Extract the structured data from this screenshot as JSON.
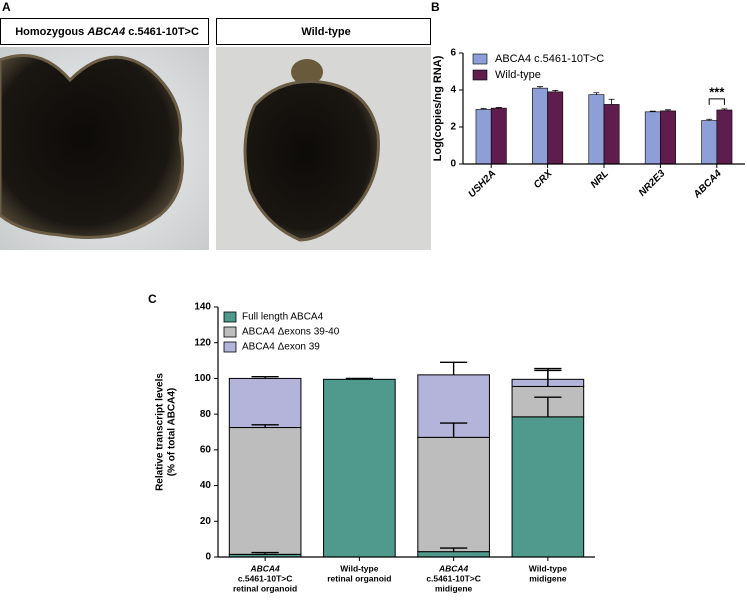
{
  "panel_a": {
    "label": "A",
    "images": [
      {
        "caption_parts": [
          "Homozygous ",
          "ABCA4",
          " c.5461-10T>C"
        ]
      },
      {
        "caption_parts": [
          "Wild-type"
        ]
      }
    ]
  },
  "chart_data": [
    {
      "type": "bar",
      "label": "B",
      "ylabel": "Log(copies/ng RNA)",
      "categories": [
        "USH2A",
        "CRX",
        "NRL",
        "NR2E3",
        "ABCA4"
      ],
      "series": [
        {
          "name": "ABCA4 c.5461-10T>C",
          "color": "#8e9fd8",
          "values": [
            2.95,
            4.1,
            3.75,
            2.82,
            2.35
          ],
          "errors": [
            0.05,
            0.08,
            0.1,
            0.04,
            0.07
          ]
        },
        {
          "name": "Wild-type",
          "color": "#5e1d4c",
          "values": [
            3.02,
            3.9,
            3.22,
            2.87,
            2.92
          ],
          "errors": [
            0.03,
            0.08,
            0.28,
            0.06,
            0.06
          ]
        }
      ],
      "ylim": [
        0,
        6
      ],
      "yticks": [
        0,
        2,
        4,
        6
      ],
      "annotation": "***"
    },
    {
      "type": "stacked_bar",
      "label": "C",
      "ylabel": [
        "Relative transcript levels",
        "(% of total ABCA4)"
      ],
      "categories": [
        [
          "ABCA4",
          "c.5461-10T>C",
          "retinal organoid"
        ],
        [
          "Wild-type",
          "retinal organoid"
        ],
        [
          "ABCA4",
          "c.5461-10T>C",
          "midigene"
        ],
        [
          "Wild-type",
          "midigene"
        ]
      ],
      "series": [
        {
          "name": "Full length ABCA4",
          "color": "#4f9a8c",
          "values": [
            1.5,
            99.5,
            3,
            78.5
          ],
          "errors": [
            1,
            0.5,
            2,
            11
          ]
        },
        {
          "name": "ABCA4 Δexons 39-40",
          "color": "#bdbdbd",
          "values": [
            71,
            0,
            64,
            17
          ],
          "errors": [
            1.5,
            null,
            8,
            9
          ]
        },
        {
          "name": "ABCA4 Δexon 39",
          "color": "#b4b3d9",
          "values": [
            27.5,
            0,
            35,
            4
          ],
          "errors": [
            1,
            null,
            7,
            6
          ]
        }
      ],
      "ylim": [
        0,
        140
      ],
      "yticks": [
        0,
        20,
        40,
        60,
        80,
        100,
        120,
        140
      ]
    }
  ]
}
